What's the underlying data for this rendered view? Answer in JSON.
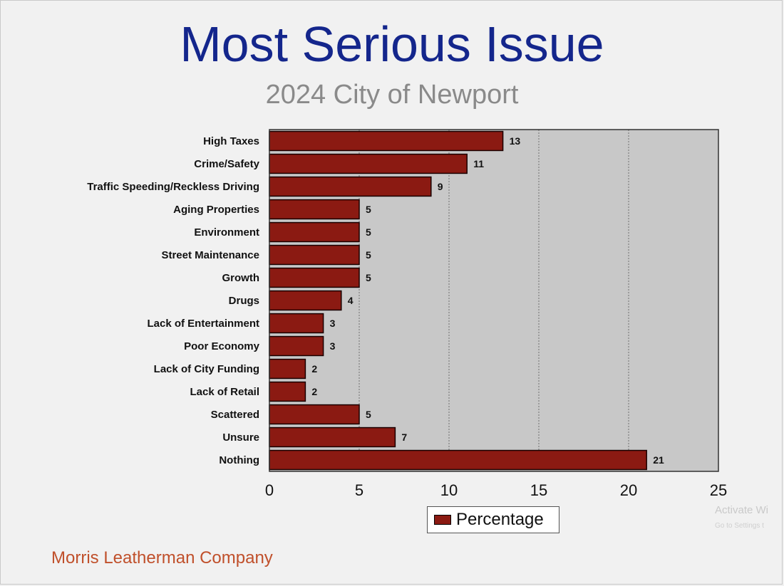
{
  "title": "Most Serious Issue",
  "subtitle": "2024 City of Newport",
  "footer": "Morris Leatherman Company",
  "watermark": {
    "line1": "Activate Wi",
    "line2": "Go to Settings t"
  },
  "colors": {
    "bar": "#8b1a12",
    "plot_bg": "#c8c8c8",
    "title": "#14268c",
    "subtitle": "#8a8a8a",
    "footer": "#c0502b"
  },
  "legend": {
    "label": "Percentage",
    "placement": "bottom-center"
  },
  "chart_data": {
    "type": "bar",
    "orientation": "horizontal",
    "categories": [
      "High Taxes",
      "Crime/Safety",
      "Traffic Speeding/Reckless Driving",
      "Aging Properties",
      "Environment",
      "Street Maintenance",
      "Growth",
      "Drugs",
      "Lack of Entertainment",
      "Poor Economy",
      "Lack of City Funding",
      "Lack of Retail",
      "Scattered",
      "Unsure",
      "Nothing"
    ],
    "series": [
      {
        "name": "Percentage",
        "values": [
          13,
          11,
          9,
          5,
          5,
          5,
          5,
          4,
          3,
          3,
          2,
          2,
          5,
          7,
          21
        ]
      }
    ],
    "xlim": [
      0,
      25
    ],
    "xticks": [
      0,
      5,
      10,
      15,
      20,
      25
    ],
    "grid": true,
    "data_labels": true
  }
}
